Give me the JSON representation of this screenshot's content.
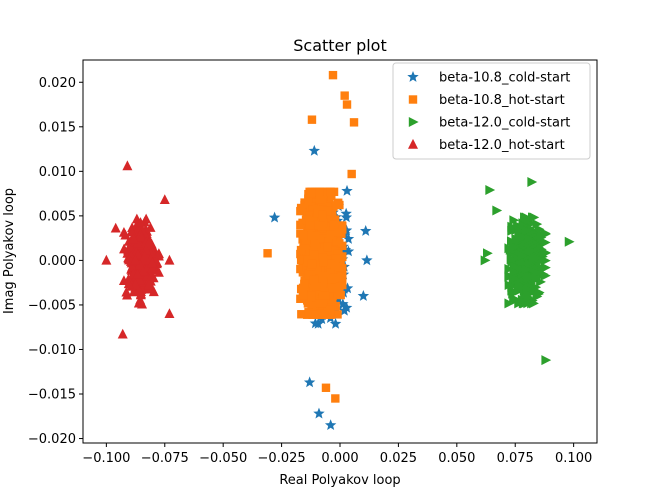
{
  "chart_data": {
    "type": "scatter",
    "title": "Scatter plot",
    "xlabel": "Real Polyakov loop",
    "ylabel": "Imag Polyakov loop",
    "xlim": [
      -0.11,
      0.11
    ],
    "ylim": [
      -0.0205,
      0.0225
    ],
    "xticks": [
      -0.1,
      -0.075,
      -0.05,
      -0.025,
      0.0,
      0.025,
      0.05,
      0.075,
      0.1
    ],
    "xtick_labels": [
      "−0.100",
      "−0.075",
      "−0.050",
      "−0.025",
      "0.000",
      "0.025",
      "0.050",
      "0.075",
      "0.100"
    ],
    "yticks": [
      -0.02,
      -0.015,
      -0.01,
      -0.005,
      0.0,
      0.005,
      0.01,
      0.015,
      0.02
    ],
    "ytick_labels": [
      "−0.020",
      "−0.015",
      "−0.010",
      "−0.005",
      "0.000",
      "0.005",
      "0.010",
      "0.015",
      "0.020"
    ],
    "grid": false,
    "legend_position": "top-right",
    "series": [
      {
        "name": "beta-10.8_cold-start",
        "marker": "star",
        "color": "#1f77b4",
        "center": [
          -0.005,
          0.0
        ],
        "spread": [
          0.0075,
          0.0062
        ],
        "count": 320,
        "extreme_points": [
          [
            -0.011,
            0.0123
          ],
          [
            -0.004,
            -0.0185
          ],
          [
            -0.009,
            -0.0172
          ],
          [
            0.011,
            0.0033
          ],
          [
            0.0115,
            0.0
          ],
          [
            0.01,
            -0.004
          ],
          [
            -0.013,
            -0.0137
          ],
          [
            0.003,
            0.0078
          ],
          [
            -0.028,
            0.0048
          ]
        ]
      },
      {
        "name": "beta-10.8_hot-start",
        "marker": "square",
        "color": "#ff7f0e",
        "center": [
          -0.008,
          0.0008
        ],
        "spread": [
          0.0078,
          0.006
        ],
        "count": 900,
        "extreme_points": [
          [
            -0.003,
            0.0208
          ],
          [
            0.002,
            0.0185
          ],
          [
            0.003,
            0.0175
          ],
          [
            -0.012,
            0.0158
          ],
          [
            0.006,
            0.0155
          ],
          [
            -0.006,
            -0.0143
          ],
          [
            -0.002,
            -0.0155
          ],
          [
            0.005,
            0.0097
          ],
          [
            -0.031,
            0.0008
          ]
        ]
      },
      {
        "name": "beta-12.0_cold-start",
        "marker": "triangle-right",
        "color": "#2ca02c",
        "center": [
          0.08,
          0.0
        ],
        "spread": [
          0.0068,
          0.0042
        ],
        "count": 420,
        "extreme_points": [
          [
            0.088,
            -0.0112
          ],
          [
            0.082,
            0.0088
          ],
          [
            0.064,
            0.0079
          ],
          [
            0.098,
            0.0021
          ],
          [
            0.063,
            0.0008
          ],
          [
            0.067,
            0.0056
          ],
          [
            0.062,
            0.0
          ]
        ]
      },
      {
        "name": "beta-12.0_hot-start",
        "marker": "triangle-up",
        "color": "#d62728",
        "center": [
          -0.085,
          -0.0002
        ],
        "spread": [
          0.0065,
          0.0042
        ],
        "count": 330,
        "extreme_points": [
          [
            -0.091,
            0.0106
          ],
          [
            -0.075,
            0.0068
          ],
          [
            -0.096,
            0.0036
          ],
          [
            -0.073,
            -0.006
          ],
          [
            -0.093,
            -0.0083
          ],
          [
            -0.1,
            0.0
          ],
          [
            -0.073,
            0.0
          ]
        ]
      }
    ]
  }
}
